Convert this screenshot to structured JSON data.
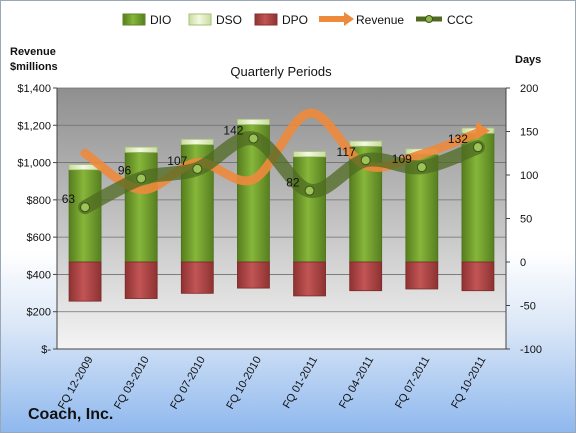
{
  "company": "Coach, Inc.",
  "chart_data": {
    "type": "bar",
    "title": "Quarterly Periods",
    "categories": [
      "FQ 12-2009",
      "FQ 03-2010",
      "FQ 07-2010",
      "FQ 10-2010",
      "FQ 01-2011",
      "FQ 04-2011",
      "FQ 07-2011",
      "FQ 10-2011"
    ],
    "series": [
      {
        "name": "DIO",
        "type": "stacked-bar",
        "axis": "days",
        "color": "#6e9b2a",
        "values": [
          106,
          126,
          135,
          158,
          121,
          133,
          124,
          148
        ]
      },
      {
        "name": "DSO",
        "type": "stacked-bar",
        "axis": "days",
        "color": "#e8f2c8",
        "values": [
          6,
          6,
          6,
          6,
          6,
          6,
          6,
          6
        ]
      },
      {
        "name": "DPO",
        "type": "stacked-bar",
        "axis": "days",
        "color": "#b04444",
        "values": [
          -45,
          -42,
          -36,
          -30,
          -39,
          -33,
          -31,
          -33
        ]
      },
      {
        "name": "Revenue",
        "type": "line",
        "axis": "revenue",
        "color": "#ed8a3c",
        "values": [
          1050,
          855,
          1000,
          910,
          1265,
          985,
          1045,
          1160
        ]
      },
      {
        "name": "CCC",
        "type": "line",
        "axis": "days",
        "color": "#4f6b22",
        "values": [
          63,
          96,
          107,
          142,
          82,
          117,
          109,
          132
        ],
        "labels": [
          "63",
          "96",
          "107",
          "142",
          "82",
          "117",
          "109",
          "132"
        ]
      }
    ],
    "y_left": {
      "label": "Revenue\n$millions",
      "ticks": [
        "$-",
        "$200",
        "$400",
        "$600",
        "$800",
        "$1,000",
        "$1,200",
        "$1,400"
      ],
      "ylim": [
        0,
        1400
      ]
    },
    "y_right": {
      "label": "Days",
      "ticks": [
        "-100",
        "-50",
        "0",
        "50",
        "100",
        "150",
        "200"
      ],
      "ylim": [
        -100,
        200
      ]
    },
    "legend": {
      "position": "top",
      "items": [
        "DIO",
        "DSO",
        "DPO",
        "Revenue",
        "CCC"
      ]
    },
    "grid": true
  }
}
